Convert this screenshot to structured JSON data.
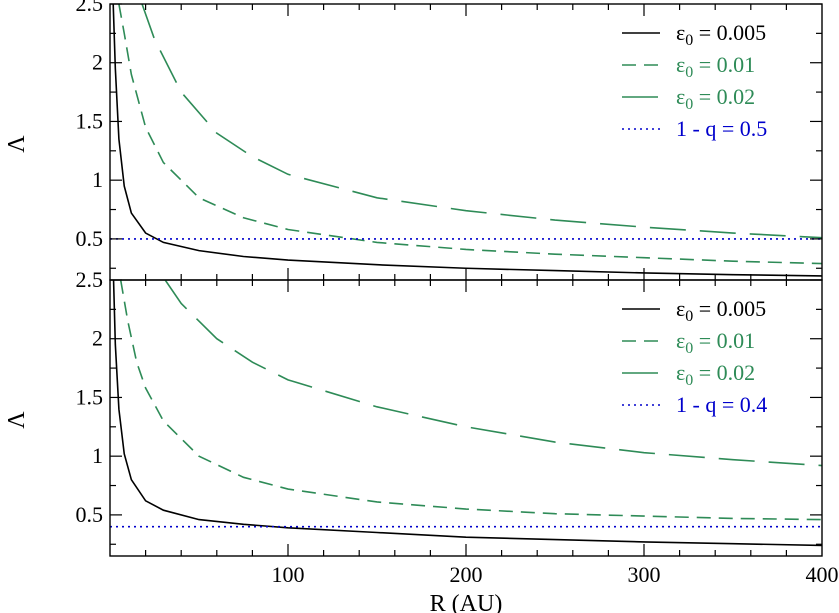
{
  "chart_data": [
    {
      "type": "line",
      "xlabel": "",
      "ylabel": "Λ",
      "xlim": [
        0,
        400
      ],
      "ylim": [
        0.15,
        2.5
      ],
      "x_ticks": [
        100,
        200,
        300,
        400
      ],
      "x_tick_labels": [],
      "y_ticks": [
        0.5,
        1,
        1.5,
        2,
        2.5
      ],
      "y_tick_labels": [
        "0.5",
        "1",
        "1.5",
        "2",
        "2.5"
      ],
      "legend_position": "top-right",
      "series": [
        {
          "name": "ε0 = 0.005",
          "name_parts": [
            "ε",
            "0",
            " = 0.005"
          ],
          "color": "#000000",
          "dash": "solid",
          "x": [
            1.8,
            3,
            5,
            8,
            12,
            20,
            30,
            50,
            75,
            100,
            150,
            200,
            250,
            300,
            350,
            400
          ],
          "y": [
            2.5,
            1.95,
            1.35,
            0.95,
            0.72,
            0.55,
            0.47,
            0.4,
            0.35,
            0.32,
            0.28,
            0.25,
            0.23,
            0.21,
            0.195,
            0.185
          ]
        },
        {
          "name": "ε0 = 0.01",
          "name_parts": [
            "ε",
            "0",
            " = 0.01"
          ],
          "color": "#2e8b57",
          "dash": "medium",
          "x": [
            5,
            8,
            12,
            20,
            30,
            50,
            75,
            100,
            150,
            200,
            250,
            300,
            350,
            400
          ],
          "y": [
            2.5,
            2.25,
            1.9,
            1.45,
            1.15,
            0.85,
            0.68,
            0.58,
            0.47,
            0.41,
            0.37,
            0.34,
            0.31,
            0.29
          ]
        },
        {
          "name": "ε0 = 0.02",
          "name_parts": [
            "ε",
            "0",
            " = 0.02"
          ],
          "color": "#2e8b57",
          "dash": "long",
          "x": [
            18,
            25,
            40,
            60,
            80,
            100,
            150,
            200,
            250,
            300,
            350,
            400
          ],
          "y": [
            2.5,
            2.2,
            1.75,
            1.4,
            1.2,
            1.05,
            0.85,
            0.74,
            0.66,
            0.6,
            0.55,
            0.51
          ]
        },
        {
          "name": "1 - q = 0.5",
          "name_parts": [
            "1 - q = 0.5"
          ],
          "color": "#0000cc",
          "dash": "dotted",
          "x": [
            0,
            400
          ],
          "y": [
            0.5,
            0.5
          ]
        }
      ]
    },
    {
      "type": "line",
      "xlabel": "R (AU)",
      "ylabel": "Λ",
      "xlim": [
        0,
        400
      ],
      "ylim": [
        0.15,
        2.5
      ],
      "x_ticks": [
        100,
        200,
        300,
        400
      ],
      "x_tick_labels": [
        "100",
        "200",
        "300",
        "400"
      ],
      "y_ticks": [
        0.5,
        1,
        1.5,
        2,
        2.5
      ],
      "y_tick_labels": [
        "0.5",
        "1",
        "1.5",
        "2",
        "2.5"
      ],
      "legend_position": "top-right",
      "series": [
        {
          "name": "ε0 = 0.005",
          "name_parts": [
            "ε",
            "0",
            " = 0.005"
          ],
          "color": "#000000",
          "dash": "solid",
          "x": [
            2,
            3,
            5,
            8,
            12,
            20,
            30,
            50,
            75,
            100,
            150,
            200,
            250,
            300,
            350,
            400
          ],
          "y": [
            2.5,
            1.95,
            1.4,
            1.02,
            0.8,
            0.62,
            0.54,
            0.46,
            0.42,
            0.39,
            0.35,
            0.31,
            0.29,
            0.27,
            0.255,
            0.24
          ]
        },
        {
          "name": "ε0 = 0.01",
          "name_parts": [
            "ε",
            "0",
            " = 0.01"
          ],
          "color": "#2e8b57",
          "dash": "medium",
          "x": [
            6,
            10,
            15,
            20,
            30,
            50,
            75,
            100,
            150,
            200,
            250,
            300,
            350,
            400
          ],
          "y": [
            2.5,
            2.15,
            1.8,
            1.58,
            1.3,
            1.0,
            0.82,
            0.72,
            0.61,
            0.55,
            0.51,
            0.49,
            0.47,
            0.46
          ]
        },
        {
          "name": "ε0 = 0.02",
          "name_parts": [
            "ε",
            "0",
            " = 0.02"
          ],
          "color": "#2e8b57",
          "dash": "long",
          "x": [
            31,
            40,
            60,
            80,
            100,
            150,
            200,
            250,
            300,
            350,
            400
          ],
          "y": [
            2.5,
            2.3,
            2.0,
            1.8,
            1.65,
            1.42,
            1.25,
            1.12,
            1.03,
            0.97,
            0.92
          ]
        },
        {
          "name": "1 - q = 0.4",
          "name_parts": [
            "1 - q = 0.4"
          ],
          "color": "#0000cc",
          "dash": "dotted",
          "x": [
            0,
            400
          ],
          "y": [
            0.4,
            0.4
          ]
        }
      ]
    }
  ]
}
